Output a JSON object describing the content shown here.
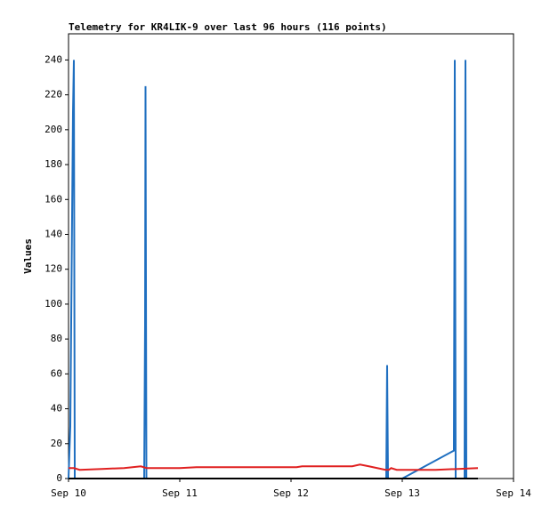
{
  "chart_data": {
    "type": "line",
    "title": "Telemetry for KR4LIK-9 over last 96 hours (116 points)",
    "y_label": "Values",
    "xlim": [
      10,
      14
    ],
    "xticks": [
      {
        "value": 10,
        "label": "Sep 10"
      },
      {
        "value": 11,
        "label": "Sep 11"
      },
      {
        "value": 12,
        "label": "Sep 12"
      },
      {
        "value": 13,
        "label": "Sep 13"
      },
      {
        "value": 14,
        "label": "Sep 14"
      }
    ],
    "ylim": [
      0,
      255
    ],
    "yticks": [
      0,
      20,
      40,
      60,
      80,
      100,
      120,
      140,
      160,
      180,
      200,
      220,
      240
    ],
    "grid": false,
    "series": [
      {
        "color": "#1f6fc0",
        "x": [
          10.0,
          10.016,
          10.024,
          10.032,
          10.04,
          10.048,
          10.056,
          10.68,
          10.688,
          10.692,
          10.7,
          12.856,
          12.864,
          12.868,
          12.872,
          13.0,
          13.464,
          13.468,
          13.472,
          13.48,
          13.56,
          13.568,
          13.576,
          13.68
        ],
        "values": [
          0,
          30,
          90,
          150,
          210,
          240,
          0,
          0,
          88,
          225,
          0,
          0,
          65,
          32,
          0,
          0,
          16,
          112,
          240,
          0,
          0,
          240,
          0,
          0
        ]
      },
      {
        "color": "#e02020",
        "x": [
          10.0,
          10.05,
          10.1,
          10.3,
          10.5,
          10.65,
          10.7,
          11.0,
          11.15,
          11.5,
          12.05,
          12.1,
          12.55,
          12.62,
          12.7,
          12.85,
          12.88,
          12.9,
          12.95,
          13.3,
          13.5,
          13.68
        ],
        "values": [
          6,
          6,
          5,
          5.5,
          6,
          7,
          6,
          6,
          6.5,
          6.5,
          6.5,
          7,
          7,
          8,
          7,
          5,
          5,
          6,
          5,
          5,
          5.5,
          6
        ]
      },
      {
        "color": "#000000",
        "x": [
          10.0,
          13.68
        ],
        "values": [
          0,
          0
        ]
      }
    ]
  }
}
